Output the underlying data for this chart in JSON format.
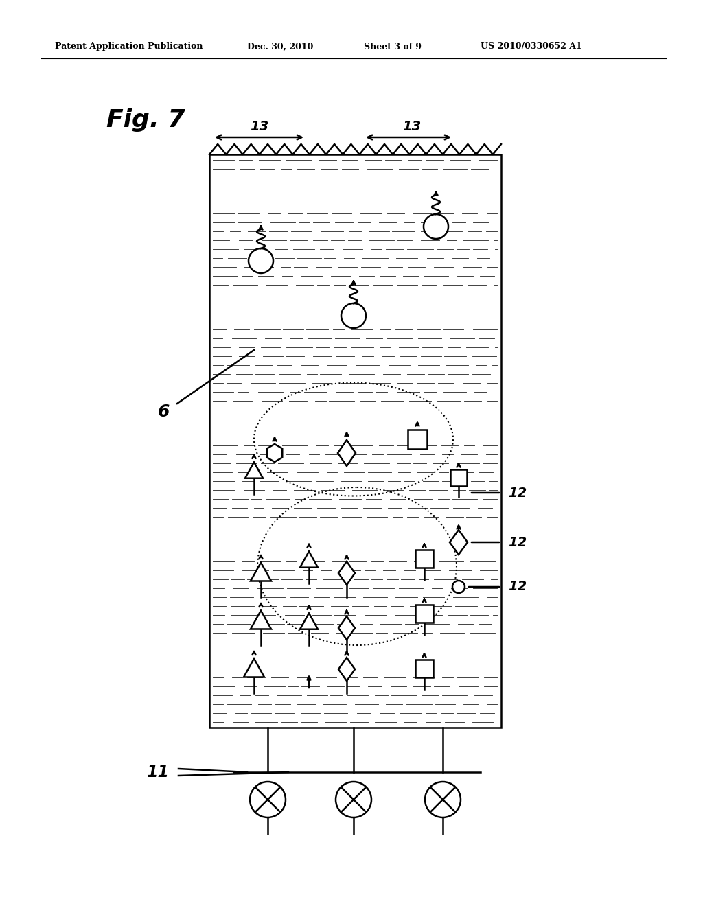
{
  "title_header": "Patent Application Publication",
  "date_header": "Dec. 30, 2010",
  "sheet_header": "Sheet 3 of 9",
  "patent_header": "US 2010/0330652 A1",
  "bg_color": "#ffffff",
  "line_color": "#000000"
}
